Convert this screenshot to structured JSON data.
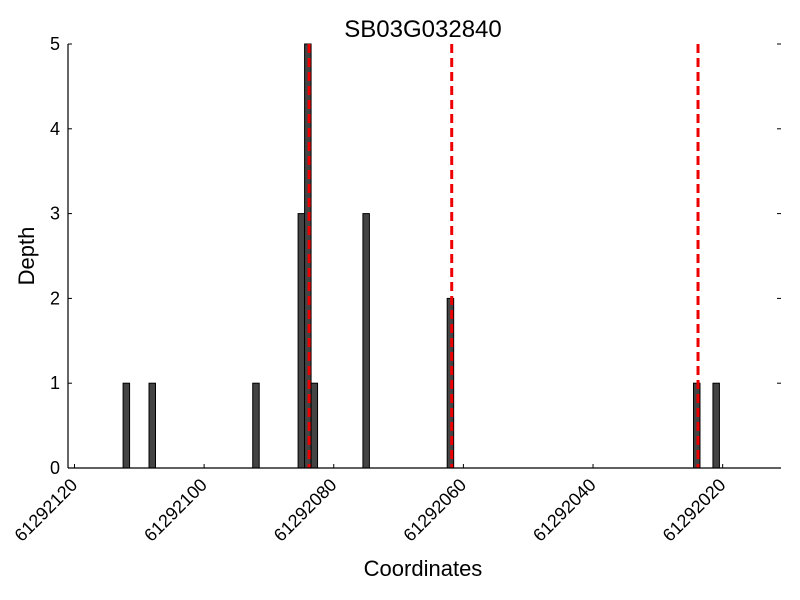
{
  "chart_data": {
    "type": "bar",
    "title": "SB03G032840",
    "xlabel": "Coordinates",
    "ylabel": "Depth",
    "x_reversed": true,
    "xlim": [
      61292121,
      61292011
    ],
    "ylim": [
      0,
      5
    ],
    "x_ticks": [
      61292120,
      61292100,
      61292080,
      61292060,
      61292040,
      61292020
    ],
    "x_tick_labels": [
      "61292120",
      "61292100",
      "61292080",
      "61292060",
      "61292040",
      "61292020"
    ],
    "y_ticks": [
      0,
      1,
      2,
      3,
      4,
      5
    ],
    "y_tick_labels": [
      "0",
      "1",
      "2",
      "3",
      "4",
      "5"
    ],
    "bar_color": "#444444",
    "bar_edge_color": "#000000",
    "bars": [
      {
        "x": 61292112,
        "depth": 1
      },
      {
        "x": 61292108,
        "depth": 1
      },
      {
        "x": 61292092,
        "depth": 1
      },
      {
        "x": 61292085,
        "depth": 3
      },
      {
        "x": 61292084,
        "depth": 5
      },
      {
        "x": 61292083,
        "depth": 1
      },
      {
        "x": 61292075,
        "depth": 3
      },
      {
        "x": 61292062,
        "depth": 2
      },
      {
        "x": 61292024,
        "depth": 1
      },
      {
        "x": 61292021,
        "depth": 1
      }
    ],
    "vlines": [
      61292083.8,
      61292061.8,
      61292023.8
    ],
    "vline_color": "#ee0000",
    "grid": false,
    "legend": "none"
  }
}
